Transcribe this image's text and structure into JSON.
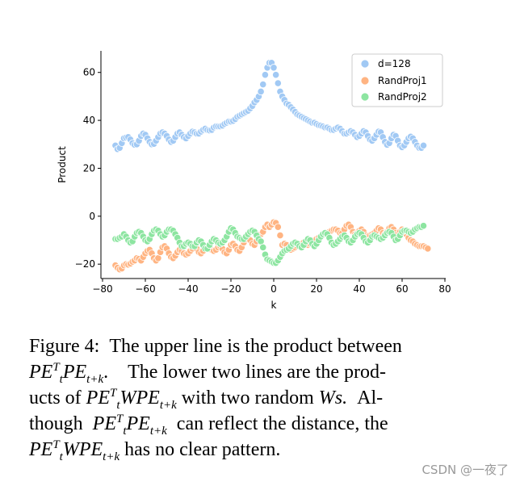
{
  "chart_data": {
    "type": "scatter",
    "xlabel": "k",
    "ylabel": "Product",
    "xlim": [
      -80,
      80
    ],
    "ylim": [
      -26,
      69
    ],
    "xticks": [
      -80,
      -60,
      -40,
      -20,
      0,
      20,
      40,
      60,
      80
    ],
    "xtick_labels": [
      "−80",
      "−60",
      "−40",
      "−20",
      "0",
      "20",
      "40",
      "60",
      "80"
    ],
    "yticks": [
      -20,
      0,
      20,
      40,
      60
    ],
    "ytick_labels": [
      "−20",
      "0",
      "20",
      "40",
      "60"
    ],
    "grid": false,
    "legend_position": "top-right",
    "x": [
      -74,
      -73,
      -72,
      -71,
      -70,
      -69,
      -68,
      -67,
      -66,
      -65,
      -64,
      -63,
      -62,
      -61,
      -60,
      -59,
      -58,
      -57,
      -56,
      -55,
      -54,
      -53,
      -52,
      -51,
      -50,
      -49,
      -48,
      -47,
      -46,
      -45,
      -44,
      -43,
      -42,
      -41,
      -40,
      -39,
      -38,
      -37,
      -36,
      -35,
      -34,
      -33,
      -32,
      -31,
      -30,
      -29,
      -28,
      -27,
      -26,
      -25,
      -24,
      -23,
      -22,
      -21,
      -20,
      -19,
      -18,
      -17,
      -16,
      -15,
      -14,
      -13,
      -12,
      -11,
      -10,
      -9,
      -8,
      -7,
      -6,
      -5,
      -4,
      -3,
      -2,
      -1,
      0,
      1,
      2,
      3,
      4,
      5,
      6,
      7,
      8,
      9,
      10,
      11,
      12,
      13,
      14,
      15,
      16,
      17,
      18,
      19,
      20,
      21,
      22,
      23,
      24,
      25,
      26,
      27,
      28,
      29,
      30,
      31,
      32,
      33,
      34,
      35,
      36,
      37,
      38,
      39,
      40,
      41,
      42,
      43,
      44,
      45,
      46,
      47,
      48,
      49,
      50,
      51,
      52,
      53,
      54,
      55,
      56,
      57,
      58,
      59,
      60,
      61,
      62,
      63,
      64,
      65,
      66,
      67,
      68,
      69,
      70,
      71,
      72,
      73,
      74
    ],
    "series": [
      {
        "name": "d=128",
        "color": "#a1c9f4",
        "values": [
          29.5,
          28.0,
          28.5,
          30.5,
          32.5,
          32.8,
          33.0,
          32.0,
          30.5,
          29.8,
          30.0,
          31.5,
          33.5,
          34.5,
          34.0,
          32.5,
          31.0,
          30.0,
          30.2,
          31.5,
          33.0,
          34.5,
          35.0,
          34.5,
          33.5,
          32.0,
          31.0,
          31.5,
          33.0,
          34.5,
          35.0,
          34.0,
          33.0,
          32.5,
          33.5,
          34.5,
          35.3,
          35.0,
          34.5,
          34.5,
          35.3,
          36.0,
          36.5,
          36.0,
          35.8,
          36.0,
          37.0,
          37.5,
          37.5,
          37.5,
          37.8,
          38.5,
          39.0,
          39.5,
          39.5,
          39.8,
          40.5,
          41.5,
          42.0,
          42.5,
          43.0,
          43.5,
          44.0,
          45.0,
          46.0,
          47.5,
          48.5,
          50.0,
          52.0,
          55.0,
          59.0,
          62.0,
          64.0,
          64.0,
          62.0,
          59.0,
          55.5,
          52.0,
          50.0,
          48.5,
          47.0,
          46.5,
          45.5,
          44.5,
          43.5,
          42.5,
          42.0,
          41.5,
          41.0,
          40.5,
          40.0,
          39.5,
          39.0,
          39.0,
          38.5,
          38.0,
          37.8,
          37.5,
          37.0,
          37.0,
          36.5,
          36.0,
          36.0,
          36.5,
          37.0,
          36.5,
          35.5,
          34.5,
          34.5,
          35.0,
          35.5,
          35.0,
          34.0,
          33.0,
          33.5,
          34.5,
          35.5,
          35.0,
          33.5,
          32.0,
          31.5,
          32.5,
          34.0,
          35.3,
          35.0,
          33.0,
          31.0,
          29.8,
          30.5,
          32.5,
          34.0,
          33.5,
          31.5,
          29.5,
          28.8,
          29.5,
          31.0,
          32.5,
          33.2,
          32.5,
          31.0,
          29.5,
          28.5,
          28.5,
          29.5
        ]
      },
      {
        "name": "RandProj1",
        "color": "#ffb482",
        "values": [
          -20.5,
          -21.5,
          -22.2,
          -21.8,
          -20.5,
          -20.0,
          -20.2,
          -19.8,
          -19.0,
          -18.5,
          -17.5,
          -17.8,
          -18.5,
          -17.0,
          -15.5,
          -14.5,
          -14.0,
          -15.5,
          -17.5,
          -18.5,
          -17.5,
          -15.0,
          -13.0,
          -12.5,
          -13.5,
          -15.5,
          -17.0,
          -17.5,
          -16.5,
          -15.0,
          -14.0,
          -14.5,
          -15.5,
          -16.0,
          -15.5,
          -14.5,
          -13.5,
          -12.5,
          -13.5,
          -15.0,
          -15.5,
          -14.5,
          -13.0,
          -12.5,
          -13.0,
          -14.0,
          -14.5,
          -14.0,
          -13.0,
          -12.5,
          -13.5,
          -15.0,
          -15.5,
          -14.0,
          -12.0,
          -11.5,
          -12.5,
          -14.0,
          -14.5,
          -13.0,
          -11.0,
          -9.5,
          -9.0,
          -10.0,
          -11.5,
          -12.0,
          -10.5,
          -8.5,
          -7.5,
          -6.5,
          -4.5,
          -3.5,
          -4.5,
          -3.5,
          -2.5,
          -2.8,
          -4.5,
          -8.0,
          -12.0,
          -11.5,
          -12.0,
          -13.5,
          -14.0,
          -13.5,
          -13.0,
          -12.5,
          -12.0,
          -11.5,
          -11.0,
          -11.5,
          -12.0,
          -11.5,
          -11.0,
          -10.0,
          -9.5,
          -9.0,
          -8.5,
          -8.0,
          -7.5,
          -7.0,
          -6.5,
          -6.0,
          -5.5,
          -5.5,
          -6.0,
          -7.0,
          -7.0,
          -5.5,
          -4.0,
          -3.5,
          -4.5,
          -6.5,
          -7.5,
          -7.0,
          -6.0,
          -5.5,
          -6.5,
          -8.0,
          -8.5,
          -8.0,
          -7.5,
          -7.0,
          -6.0,
          -5.0,
          -5.5,
          -7.0,
          -7.5,
          -6.5,
          -5.0,
          -4.5,
          -5.5,
          -7.0,
          -7.5,
          -6.5,
          -5.5,
          -6.0,
          -7.5,
          -9.0,
          -10.0,
          -10.5,
          -11.5,
          -12.0,
          -12.5,
          -12.5,
          -12.5,
          -13.0,
          -13.5
        ]
      },
      {
        "name": "RandProj2",
        "color": "#8de5a1",
        "values": [
          -9.5,
          -9.5,
          -9.0,
          -8.5,
          -7.5,
          -8.5,
          -10.0,
          -11.0,
          -10.5,
          -8.5,
          -7.0,
          -6.5,
          -7.0,
          -8.5,
          -10.0,
          -10.5,
          -9.5,
          -7.5,
          -6.0,
          -5.5,
          -6.0,
          -7.5,
          -8.5,
          -8.0,
          -6.5,
          -5.5,
          -5.5,
          -6.0,
          -7.5,
          -9.0,
          -11.0,
          -12.5,
          -12.5,
          -11.5,
          -11.0,
          -11.5,
          -12.5,
          -12.5,
          -11.0,
          -10.0,
          -10.5,
          -12.0,
          -13.5,
          -13.5,
          -12.0,
          -10.5,
          -9.5,
          -10.0,
          -11.0,
          -11.5,
          -11.0,
          -10.0,
          -8.5,
          -6.5,
          -5.0,
          -5.5,
          -7.0,
          -8.5,
          -9.0,
          -9.5,
          -9.5,
          -8.5,
          -7.5,
          -6.5,
          -6.0,
          -6.5,
          -8.0,
          -9.5,
          -10.5,
          -13.0,
          -16.0,
          -18.0,
          -18.5,
          -19.0,
          -19.5,
          -19.5,
          -18.5,
          -17.0,
          -15.5,
          -14.5,
          -14.0,
          -13.5,
          -12.5,
          -11.5,
          -11.0,
          -11.5,
          -12.5,
          -13.0,
          -12.0,
          -10.5,
          -9.5,
          -10.0,
          -11.5,
          -12.5,
          -11.5,
          -10.0,
          -8.5,
          -7.5,
          -7.0,
          -7.5,
          -9.0,
          -11.0,
          -12.0,
          -11.5,
          -10.5,
          -9.5,
          -8.5,
          -8.0,
          -9.0,
          -10.5,
          -11.0,
          -10.0,
          -8.5,
          -7.5,
          -7.0,
          -7.5,
          -9.0,
          -10.5,
          -11.0,
          -10.0,
          -8.5,
          -8.0,
          -8.5,
          -9.0,
          -9.5,
          -9.0,
          -8.0,
          -7.0,
          -6.5,
          -7.0,
          -8.5,
          -10.0,
          -9.5,
          -8.0,
          -6.5,
          -6.0,
          -6.0,
          -6.5,
          -7.0,
          -6.5,
          -5.5,
          -5.0,
          -4.5,
          -4.5,
          -4.0
        ]
      }
    ]
  },
  "caption": {
    "label": "Figure 4:",
    "text_1": "The upper line is the product between",
    "text_2": "The lower two lines are the prod-",
    "text_3a": "ucts of",
    "text_3b": "with two random",
    "text_3c": "Ws.",
    "text_3d": "Al-",
    "text_4a": "though",
    "text_4b": "can reflect the distance, the",
    "text_5": "has no clear pattern.",
    "pe": "PE",
    "w": "W",
    "sub_t": "t",
    "sup_T": "T",
    "sub_tk": "t+k"
  },
  "watermark": "CSDN @一夜了"
}
